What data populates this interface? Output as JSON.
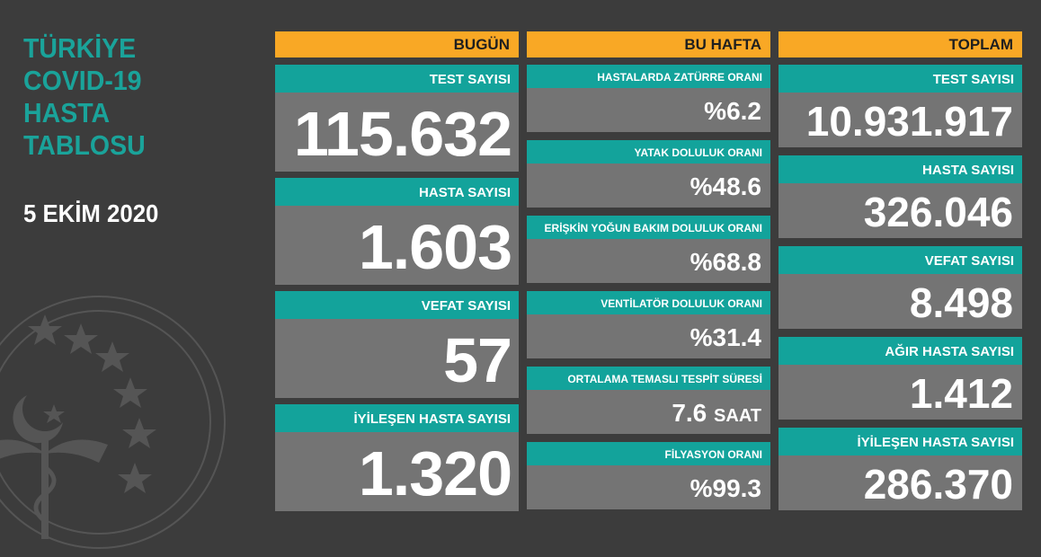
{
  "title_lines": [
    "TÜRKİYE",
    "COVID-19",
    "HASTA",
    "TABLOSU"
  ],
  "date": "5 EKİM 2020",
  "colors": {
    "accent": "#f9a825",
    "teal": "#13a39b",
    "card": "#747474",
    "background": "#3c3c3c"
  },
  "today": {
    "header": "BUGÜN",
    "items": [
      {
        "label": "TEST SAYISI",
        "value": "115.632"
      },
      {
        "label": "HASTA SAYISI",
        "value": "1.603"
      },
      {
        "label": "VEFAT SAYISI",
        "value": "57"
      },
      {
        "label": "İYİLEŞEN HASTA SAYISI",
        "value": "1.320"
      }
    ]
  },
  "week": {
    "header": "BU HAFTA",
    "items": [
      {
        "label": "HASTALARDA ZATÜRRE ORANI",
        "value": "%6.2",
        "unit": ""
      },
      {
        "label": "YATAK DOLULUK ORANI",
        "value": "%48.6",
        "unit": ""
      },
      {
        "label": "ERİŞKİN YOĞUN BAKIM DOLULUK ORANI",
        "value": "%68.8",
        "unit": ""
      },
      {
        "label": "VENTİLATÖR DOLULUK ORANI",
        "value": "%31.4",
        "unit": ""
      },
      {
        "label": "ORTALAMA TEMASLI TESPİT SÜRESİ",
        "value": "7.6",
        "unit": "SAAT"
      },
      {
        "label": "FİLYASYON ORANI",
        "value": "%99.3",
        "unit": ""
      }
    ]
  },
  "total": {
    "header": "TOPLAM",
    "items": [
      {
        "label": "TEST SAYISI",
        "value": "10.931.917"
      },
      {
        "label": "HASTA SAYISI",
        "value": "326.046"
      },
      {
        "label": "VEFAT SAYISI",
        "value": "8.498"
      },
      {
        "label": "AĞIR HASTA SAYISI",
        "value": "1.412"
      },
      {
        "label": "İYİLEŞEN HASTA SAYISI",
        "value": "286.370"
      }
    ]
  }
}
